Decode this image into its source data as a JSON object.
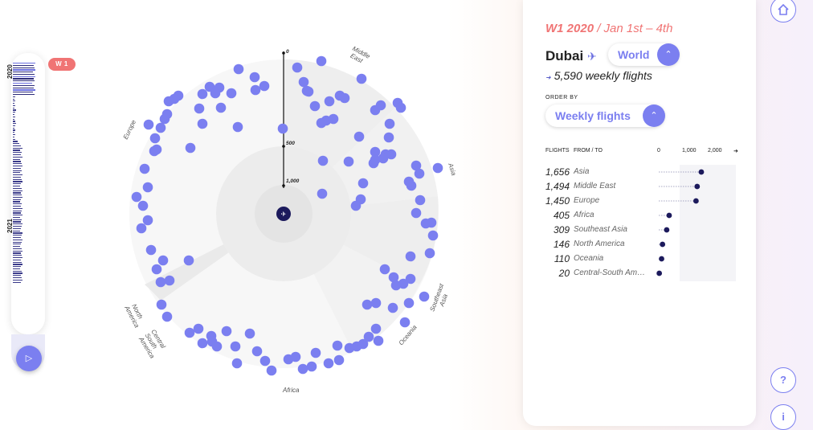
{
  "timeline": {
    "years": [
      "2020",
      "2021"
    ],
    "current_week_badge": "W 1",
    "play_icon": "play-icon"
  },
  "chart": {
    "axis_ticks": [
      "0",
      "500",
      "1,000"
    ],
    "regions": {
      "middle_east": [
        "Middle",
        "East"
      ],
      "asia": "Asia",
      "southeast_asia": [
        "Southeast",
        "Asia"
      ],
      "oceania": "Oceania",
      "africa": "Africa",
      "central_south_america": [
        "Central",
        "South",
        "America"
      ],
      "north_america": [
        "North",
        "America"
      ],
      "europe": "Europe"
    },
    "center_icon": "plane-icon",
    "dot_color": "#7b7ff0"
  },
  "panel": {
    "week_label": "W1 2020",
    "week_range": " / Jan 1st – 4th",
    "city": "Dubai",
    "scope": "World",
    "weekly_flights": "5,590 weekly flights",
    "order_by_label": "ORDER BY",
    "order_by_value": "Weekly flights",
    "table": {
      "col_flights": "FLIGHTS",
      "col_from_to": "FROM / TO",
      "axis_ticks": [
        "0",
        "1,000",
        "2,000"
      ],
      "rows": [
        {
          "flights": "1,656",
          "region": "Asia",
          "value": 1656
        },
        {
          "flights": "1,494",
          "region": "Middle East",
          "value": 1494
        },
        {
          "flights": "1,450",
          "region": "Europe",
          "value": 1450
        },
        {
          "flights": "405",
          "region": "Africa",
          "value": 405
        },
        {
          "flights": "309",
          "region": "Southeast Asia",
          "value": 309
        },
        {
          "flights": "146",
          "region": "North America",
          "value": 146
        },
        {
          "flights": "110",
          "region": "Oceania",
          "value": 110
        },
        {
          "flights": "20",
          "region": "Central-South Am…",
          "value": 20
        }
      ]
    }
  },
  "buttons": {
    "home": "home-icon",
    "help": "?",
    "info": "i"
  },
  "colors": {
    "accent": "#7b7ff0",
    "week_red": "#f07474",
    "dark_navy": "#1c1a5c"
  }
}
